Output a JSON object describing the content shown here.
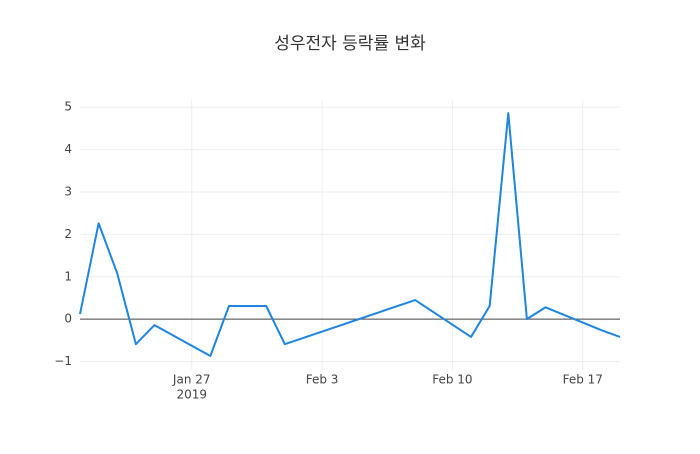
{
  "chart_data": {
    "type": "line",
    "title": "성우전자 등락률 변화",
    "x": [
      "2019-01-21",
      "2019-01-22",
      "2019-01-23",
      "2019-01-24",
      "2019-01-25",
      "2019-01-28",
      "2019-01-29",
      "2019-01-30",
      "2019-01-31",
      "2019-02-01",
      "2019-02-08",
      "2019-02-11",
      "2019-02-12",
      "2019-02-13",
      "2019-02-14",
      "2019-02-15",
      "2019-02-18",
      "2019-02-19"
    ],
    "series": [
      {
        "color": "#1f85de",
        "values": [
          0.12,
          2.26,
          1.08,
          -0.59,
          -0.14,
          -0.87,
          0.31,
          0.31,
          0.31,
          -0.59,
          0.45,
          -0.42,
          0.31,
          4.86,
          0,
          0.28,
          -0.26,
          -0.42
        ]
      }
    ],
    "xlim": [
      "2019-01-21",
      "2019-02-19"
    ],
    "xticks": [
      {
        "value": "2019-01-27",
        "label": "Jan 27"
      },
      {
        "value": "2019-02-03",
        "label": "Feb 3"
      },
      {
        "value": "2019-02-10",
        "label": "Feb 10"
      },
      {
        "value": "2019-02-17",
        "label": "Feb 17"
      }
    ],
    "x_year_label": "2019",
    "ylim": [
      -1.2,
      5.17
    ],
    "yticks": [
      {
        "value": -1,
        "label": "−1"
      },
      0,
      1,
      2,
      3,
      4,
      5
    ],
    "grid": true,
    "zero_line": true
  }
}
